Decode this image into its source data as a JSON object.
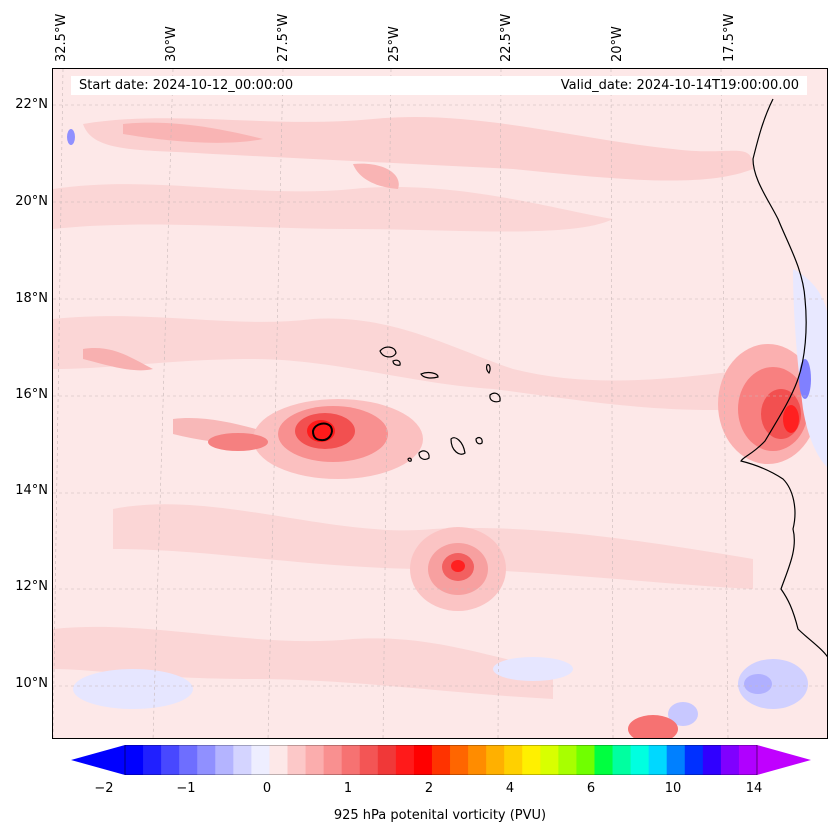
{
  "header": {
    "start_date": "Start date: 2024-10-12_00:00:00",
    "valid_date": "Valid_date: 2024-10-14T19:00:00.00"
  },
  "axes": {
    "lon_labels": [
      "32.5°W",
      "30°W",
      "27.5°W",
      "25°W",
      "22.5°W",
      "20°W",
      "17.5°W"
    ],
    "lat_labels": [
      "22°N",
      "20°N",
      "18°N",
      "16°N",
      "14°N",
      "12°N",
      "10°N"
    ]
  },
  "colorbar": {
    "label": "925 hPa potenital vorticity (PVU)",
    "ticks": [
      "−2",
      "−1",
      "0",
      "1",
      "2",
      "4",
      "6",
      "10",
      "14"
    ],
    "colors": [
      "#0000ff",
      "#2020ff",
      "#4848ff",
      "#6e6eff",
      "#9090ff",
      "#b4b4ff",
      "#d4d4ff",
      "#eeeeff",
      "#fde8e8",
      "#fcc8c8",
      "#fbadad",
      "#f99090",
      "#f67272",
      "#f35555",
      "#f03838",
      "#ff1a1a",
      "#ff0000",
      "#ff3300",
      "#ff6600",
      "#ff8c00",
      "#ffb000",
      "#ffd000",
      "#fff000",
      "#d8ff00",
      "#a8ff00",
      "#70ff00",
      "#00ff40",
      "#00ffa0",
      "#00ffe0",
      "#00d8ff",
      "#0080ff",
      "#0030ff",
      "#3000ff",
      "#8000ff",
      "#b000ff"
    ],
    "extend_min_color": "#0000ff",
    "extend_max_color": "#c000ff"
  },
  "map": {
    "background_color": "#fde8e8",
    "coastline_color": "#000000",
    "grid": true
  }
}
